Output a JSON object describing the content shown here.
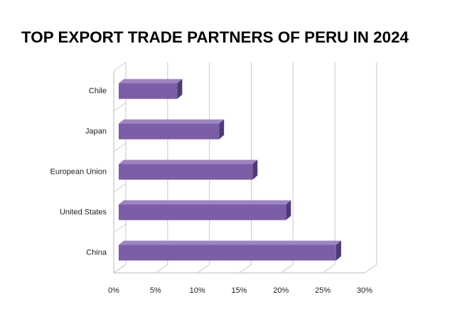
{
  "chart_data": {
    "type": "bar3d-horizontal",
    "title": "TOP EXPORT TRADE PARTNERS OF PERU IN 2024",
    "categories": [
      "Chile",
      "Japan",
      "European Union",
      "United States",
      "China"
    ],
    "values": [
      7,
      12,
      16,
      20,
      26
    ],
    "color": "#7b5ea7",
    "xlim": [
      0,
      30
    ],
    "xticks": [
      {
        "value": 0,
        "label": "0%"
      },
      {
        "value": 5,
        "label": "5%"
      },
      {
        "value": 10,
        "label": "10%"
      },
      {
        "value": 15,
        "label": "15%"
      },
      {
        "value": 20,
        "label": "20%"
      },
      {
        "value": 25,
        "label": "25%"
      },
      {
        "value": 30,
        "label": "30%"
      }
    ],
    "grid": true
  }
}
